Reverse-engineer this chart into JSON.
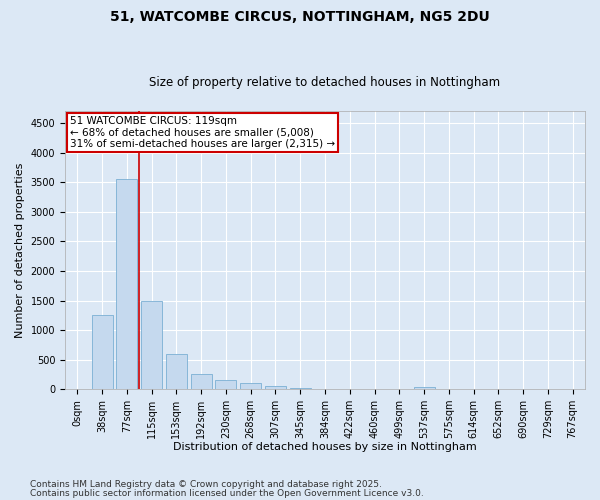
{
  "title1": "51, WATCOMBE CIRCUS, NOTTINGHAM, NG5 2DU",
  "title2": "Size of property relative to detached houses in Nottingham",
  "xlabel": "Distribution of detached houses by size in Nottingham",
  "ylabel": "Number of detached properties",
  "bar_color": "#c5d9ee",
  "bar_edge_color": "#7bafd4",
  "bg_color": "#dce8f5",
  "plot_bg_color": "#dce8f5",
  "grid_color": "#ffffff",
  "vline_color": "#cc0000",
  "categories": [
    "0sqm",
    "38sqm",
    "77sqm",
    "115sqm",
    "153sqm",
    "192sqm",
    "230sqm",
    "268sqm",
    "307sqm",
    "345sqm",
    "384sqm",
    "422sqm",
    "460sqm",
    "499sqm",
    "537sqm",
    "575sqm",
    "614sqm",
    "652sqm",
    "690sqm",
    "729sqm",
    "767sqm"
  ],
  "values": [
    10,
    1250,
    3550,
    1500,
    600,
    255,
    150,
    100,
    55,
    15,
    10,
    5,
    3,
    2,
    30,
    2,
    1,
    1,
    0,
    0,
    0
  ],
  "vline_x": 2.5,
  "annotation_text": "51 WATCOMBE CIRCUS: 119sqm\n← 68% of detached houses are smaller (5,008)\n31% of semi-detached houses are larger (2,315) →",
  "annotation_box_color": "#ffffff",
  "annotation_box_edge": "#cc0000",
  "ylim": [
    0,
    4700
  ],
  "yticks": [
    0,
    500,
    1000,
    1500,
    2000,
    2500,
    3000,
    3500,
    4000,
    4500
  ],
  "footnote1": "Contains HM Land Registry data © Crown copyright and database right 2025.",
  "footnote2": "Contains public sector information licensed under the Open Government Licence v3.0.",
  "title_fontsize": 10,
  "subtitle_fontsize": 8.5,
  "axis_label_fontsize": 8,
  "tick_fontsize": 7,
  "annotation_fontsize": 7.5,
  "footnote_fontsize": 6.5
}
